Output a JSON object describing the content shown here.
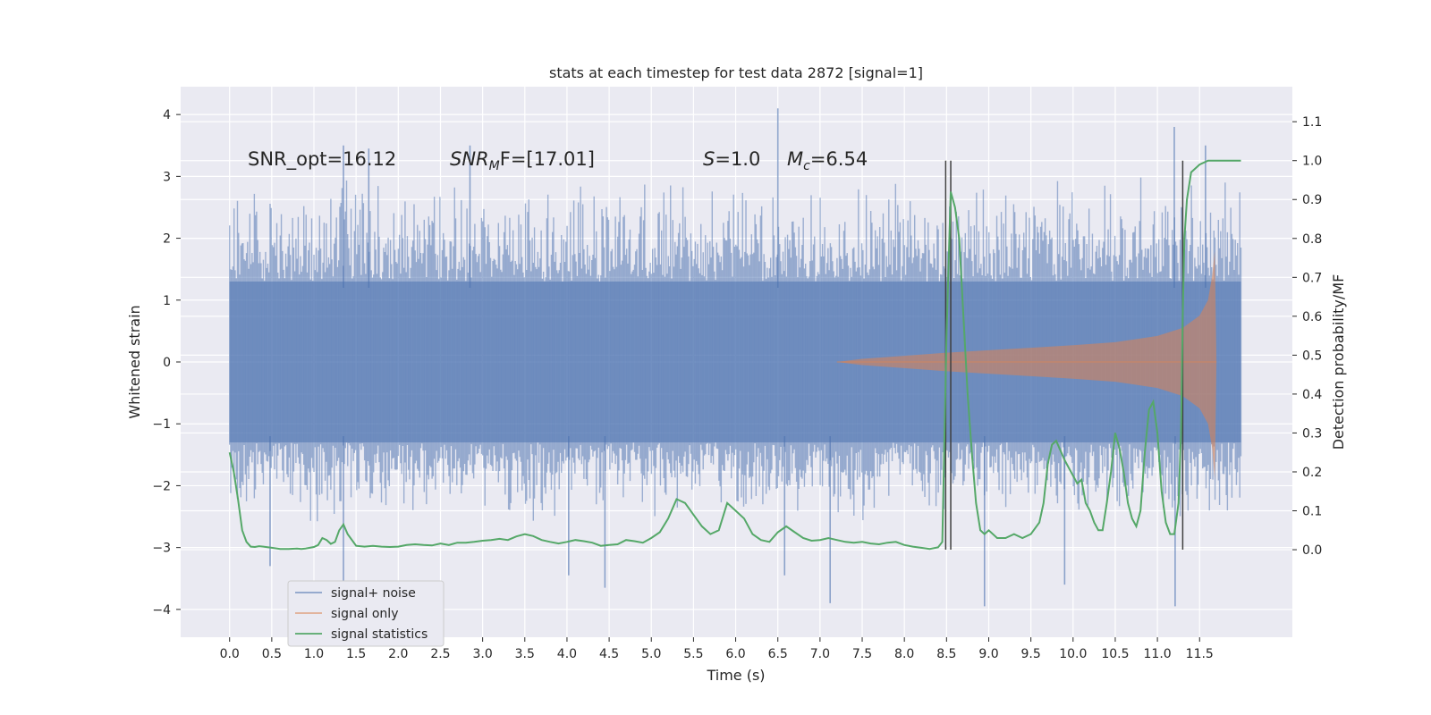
{
  "chart_data": {
    "type": "line",
    "title": "stats at each timestep for test data 2872 [signal=1]",
    "xlabel": "Time (s)",
    "ylabel": "Whitened strain",
    "ylabel_right": "Detection probability/MF",
    "xlim": [
      -0.58,
      12.6
    ],
    "ylim": [
      -4.45,
      4.45
    ],
    "ylim_right": [
      -0.225,
      1.19
    ],
    "x_ticks": [
      0.0,
      0.5,
      1.0,
      1.5,
      2.0,
      2.5,
      3.0,
      3.5,
      4.0,
      4.5,
      5.0,
      5.5,
      6.0,
      6.5,
      7.0,
      7.5,
      8.0,
      8.5,
      9.0,
      9.5,
      10.0,
      10.5,
      11.0,
      11.5
    ],
    "x_tick_labels": [
      "0.0",
      "0.5",
      "1.0",
      "1.5",
      "2.0",
      "2.5",
      "3.0",
      "3.5",
      "4.0",
      "4.5",
      "5.0",
      "5.5",
      "6.0",
      "6.5",
      "7.0",
      "7.5",
      "8.0",
      "8.5",
      "9.0",
      "9.5",
      "10.0",
      "10.5",
      "11.0",
      "11.5"
    ],
    "y_ticks": [
      4,
      3,
      2,
      1,
      0,
      -1,
      -2,
      -3,
      -4
    ],
    "y_tick_labels": [
      "4",
      "3",
      "2",
      "1",
      "0",
      "−1",
      "−2",
      "−3",
      "−4"
    ],
    "y_right_ticks": [
      1.1,
      1.0,
      0.9,
      0.8,
      0.7,
      0.6,
      0.5,
      0.4,
      0.3,
      0.2,
      0.1,
      0.0
    ],
    "y_right_tick_labels": [
      "1.1",
      "1.0",
      "0.9",
      "0.8",
      "0.7",
      "0.6",
      "0.5",
      "0.4",
      "0.3",
      "0.2",
      "0.1",
      "0.0"
    ],
    "grid": true,
    "legend_placement": "lower-left",
    "annotations": [
      {
        "text": "SNR_opt=16.12",
        "x": 0.2,
        "y": 3.3
      },
      {
        "text": "SNR_MF=[17.01]",
        "x": 2.6,
        "y": 3.3
      },
      {
        "text": "S=1.0",
        "x": 5.6,
        "y": 3.3
      },
      {
        "text": "M_c=6.54",
        "x": 6.6,
        "y": 3.3
      }
    ],
    "vlines": [
      {
        "x": 8.49,
        "ymin": 0.0,
        "ymax": 1.0
      },
      {
        "x": 8.55,
        "ymin": 0.0,
        "ymax": 1.0
      },
      {
        "x": 11.3,
        "ymin": 0.0,
        "ymax": 1.0
      }
    ],
    "series": [
      {
        "name": "signal+ noise",
        "axis": "left",
        "color": "#4c72b0",
        "description_values": {
          "x_range": [
            0.0,
            11.99
          ],
          "band_min": [
            -2.4,
            -2.2,
            -2.6,
            -2.3,
            -2.5,
            -2.2,
            -2.3,
            -2.7,
            -2.4,
            -2.3,
            -2.5,
            -2.4,
            -2.3,
            -2.5,
            -2.3,
            -2.6,
            -2.2,
            -2.4,
            -2.3,
            -2.5,
            -2.4,
            -2.3,
            -2.6,
            -2.4
          ],
          "band_max": [
            2.6,
            2.8,
            2.7,
            3.0,
            2.7,
            2.9,
            2.8,
            2.6,
            2.9,
            2.7,
            2.9,
            2.8,
            2.7,
            2.9,
            2.7,
            2.8,
            2.9,
            2.7,
            2.8,
            2.9,
            3.0,
            2.8,
            3.1,
            2.9
          ],
          "extreme_points": [
            {
              "x": 1.35,
              "y": 3.5
            },
            {
              "x": 1.65,
              "y": 3.45
            },
            {
              "x": 2.85,
              "y": 3.5
            },
            {
              "x": 6.5,
              "y": 4.1
            },
            {
              "x": 11.2,
              "y": 3.8
            },
            {
              "x": 11.57,
              "y": 3.5
            },
            {
              "x": 0.48,
              "y": -3.3
            },
            {
              "x": 1.35,
              "y": -3.6
            },
            {
              "x": 4.45,
              "y": -3.65
            },
            {
              "x": 4.02,
              "y": -3.45
            },
            {
              "x": 6.58,
              "y": -3.45
            },
            {
              "x": 7.12,
              "y": -3.9
            },
            {
              "x": 8.95,
              "y": -3.95
            },
            {
              "x": 9.9,
              "y": -3.6
            },
            {
              "x": 11.21,
              "y": -3.95
            }
          ]
        }
      },
      {
        "name": "signal only",
        "axis": "left",
        "color": "#dd8452",
        "envelope": {
          "x": [
            7.2,
            7.5,
            8.0,
            8.5,
            9.0,
            9.5,
            10.0,
            10.5,
            11.0,
            11.3,
            11.5,
            11.6,
            11.65,
            11.68,
            11.7
          ],
          "amp": [
            0.0,
            0.05,
            0.1,
            0.15,
            0.19,
            0.23,
            0.27,
            0.32,
            0.42,
            0.55,
            0.75,
            1.0,
            1.4,
            1.8,
            0.0
          ]
        },
        "negative_min": -1.9
      },
      {
        "name": "signal statistics",
        "axis": "right",
        "color": "#55a868",
        "x": [
          0.0,
          0.05,
          0.1,
          0.15,
          0.2,
          0.25,
          0.3,
          0.35,
          0.4,
          0.5,
          0.6,
          0.7,
          0.8,
          0.85,
          0.9,
          0.95,
          1.0,
          1.05,
          1.1,
          1.15,
          1.2,
          1.25,
          1.3,
          1.35,
          1.4,
          1.5,
          1.6,
          1.7,
          1.8,
          1.9,
          2.0,
          2.1,
          2.2,
          2.3,
          2.4,
          2.5,
          2.6,
          2.7,
          2.8,
          2.9,
          3.0,
          3.1,
          3.2,
          3.3,
          3.4,
          3.5,
          3.6,
          3.7,
          3.8,
          3.9,
          4.0,
          4.1,
          4.2,
          4.3,
          4.4,
          4.5,
          4.6,
          4.7,
          4.8,
          4.9,
          5.0,
          5.1,
          5.2,
          5.3,
          5.4,
          5.5,
          5.6,
          5.7,
          5.8,
          5.9,
          6.0,
          6.1,
          6.2,
          6.3,
          6.4,
          6.5,
          6.6,
          6.7,
          6.8,
          6.9,
          7.0,
          7.1,
          7.2,
          7.3,
          7.4,
          7.5,
          7.6,
          7.7,
          7.8,
          7.9,
          8.0,
          8.1,
          8.2,
          8.3,
          8.4,
          8.45,
          8.5,
          8.55,
          8.6,
          8.65,
          8.7,
          8.75,
          8.8,
          8.85,
          8.9,
          8.95,
          9.0,
          9.1,
          9.2,
          9.3,
          9.4,
          9.5,
          9.6,
          9.65,
          9.7,
          9.75,
          9.8,
          9.9,
          10.0,
          10.05,
          10.1,
          10.15,
          10.2,
          10.25,
          10.3,
          10.35,
          10.4,
          10.45,
          10.5,
          10.55,
          10.6,
          10.65,
          10.7,
          10.75,
          10.8,
          10.85,
          10.9,
          10.95,
          11.0,
          11.05,
          11.1,
          11.15,
          11.2,
          11.25,
          11.28,
          11.3,
          11.32,
          11.35,
          11.4,
          11.5,
          11.6,
          11.7,
          11.8,
          11.9,
          11.99
        ],
        "values": [
          0.25,
          0.2,
          0.13,
          0.05,
          0.02,
          0.008,
          0.007,
          0.009,
          0.008,
          0.005,
          0.002,
          0.002,
          0.003,
          0.002,
          0.003,
          0.005,
          0.007,
          0.012,
          0.03,
          0.025,
          0.015,
          0.02,
          0.05,
          0.065,
          0.04,
          0.01,
          0.008,
          0.01,
          0.008,
          0.007,
          0.008,
          0.012,
          0.014,
          0.012,
          0.011,
          0.016,
          0.012,
          0.018,
          0.018,
          0.02,
          0.023,
          0.025,
          0.028,
          0.025,
          0.034,
          0.04,
          0.035,
          0.025,
          0.02,
          0.016,
          0.02,
          0.025,
          0.022,
          0.018,
          0.01,
          0.012,
          0.014,
          0.025,
          0.022,
          0.018,
          0.03,
          0.045,
          0.08,
          0.13,
          0.12,
          0.09,
          0.06,
          0.04,
          0.05,
          0.12,
          0.1,
          0.08,
          0.04,
          0.025,
          0.02,
          0.045,
          0.06,
          0.045,
          0.03,
          0.023,
          0.025,
          0.03,
          0.025,
          0.02,
          0.018,
          0.02,
          0.016,
          0.014,
          0.018,
          0.02,
          0.012,
          0.008,
          0.005,
          0.002,
          0.006,
          0.02,
          0.55,
          0.92,
          0.88,
          0.8,
          0.6,
          0.4,
          0.25,
          0.12,
          0.05,
          0.04,
          0.05,
          0.03,
          0.03,
          0.04,
          0.03,
          0.04,
          0.07,
          0.12,
          0.22,
          0.27,
          0.28,
          0.23,
          0.19,
          0.17,
          0.18,
          0.12,
          0.1,
          0.07,
          0.05,
          0.05,
          0.12,
          0.2,
          0.3,
          0.26,
          0.2,
          0.12,
          0.08,
          0.06,
          0.1,
          0.25,
          0.36,
          0.38,
          0.3,
          0.15,
          0.07,
          0.04,
          0.04,
          0.12,
          0.3,
          0.6,
          0.8,
          0.9,
          0.97,
          0.99,
          1.0,
          1.0,
          1.0,
          1.0,
          1.0
        ]
      }
    ]
  },
  "text_annotations": {
    "snr_opt": "SNR_opt=16.12",
    "snr_mf_prefix": "SNR",
    "snr_mf_sub": "M",
    "snr_mf_rest": "F=[17.01]",
    "s_label": "S",
    "s_value": "=1.0",
    "mc_label": "M",
    "mc_sub": "c",
    "mc_value": "=6.54"
  },
  "legend": {
    "items": [
      {
        "label": "signal+ noise",
        "color": "#4c72b0"
      },
      {
        "label": "signal only",
        "color": "#dd8452"
      },
      {
        "label": "signal statistics",
        "color": "#55a868"
      }
    ]
  },
  "colors": {
    "plot_background": "#eaeaf2",
    "grid": "#ffffff",
    "noise": "#4c72b0",
    "signal": "#dd8452",
    "statistics": "#55a868",
    "vline": "#404040"
  }
}
